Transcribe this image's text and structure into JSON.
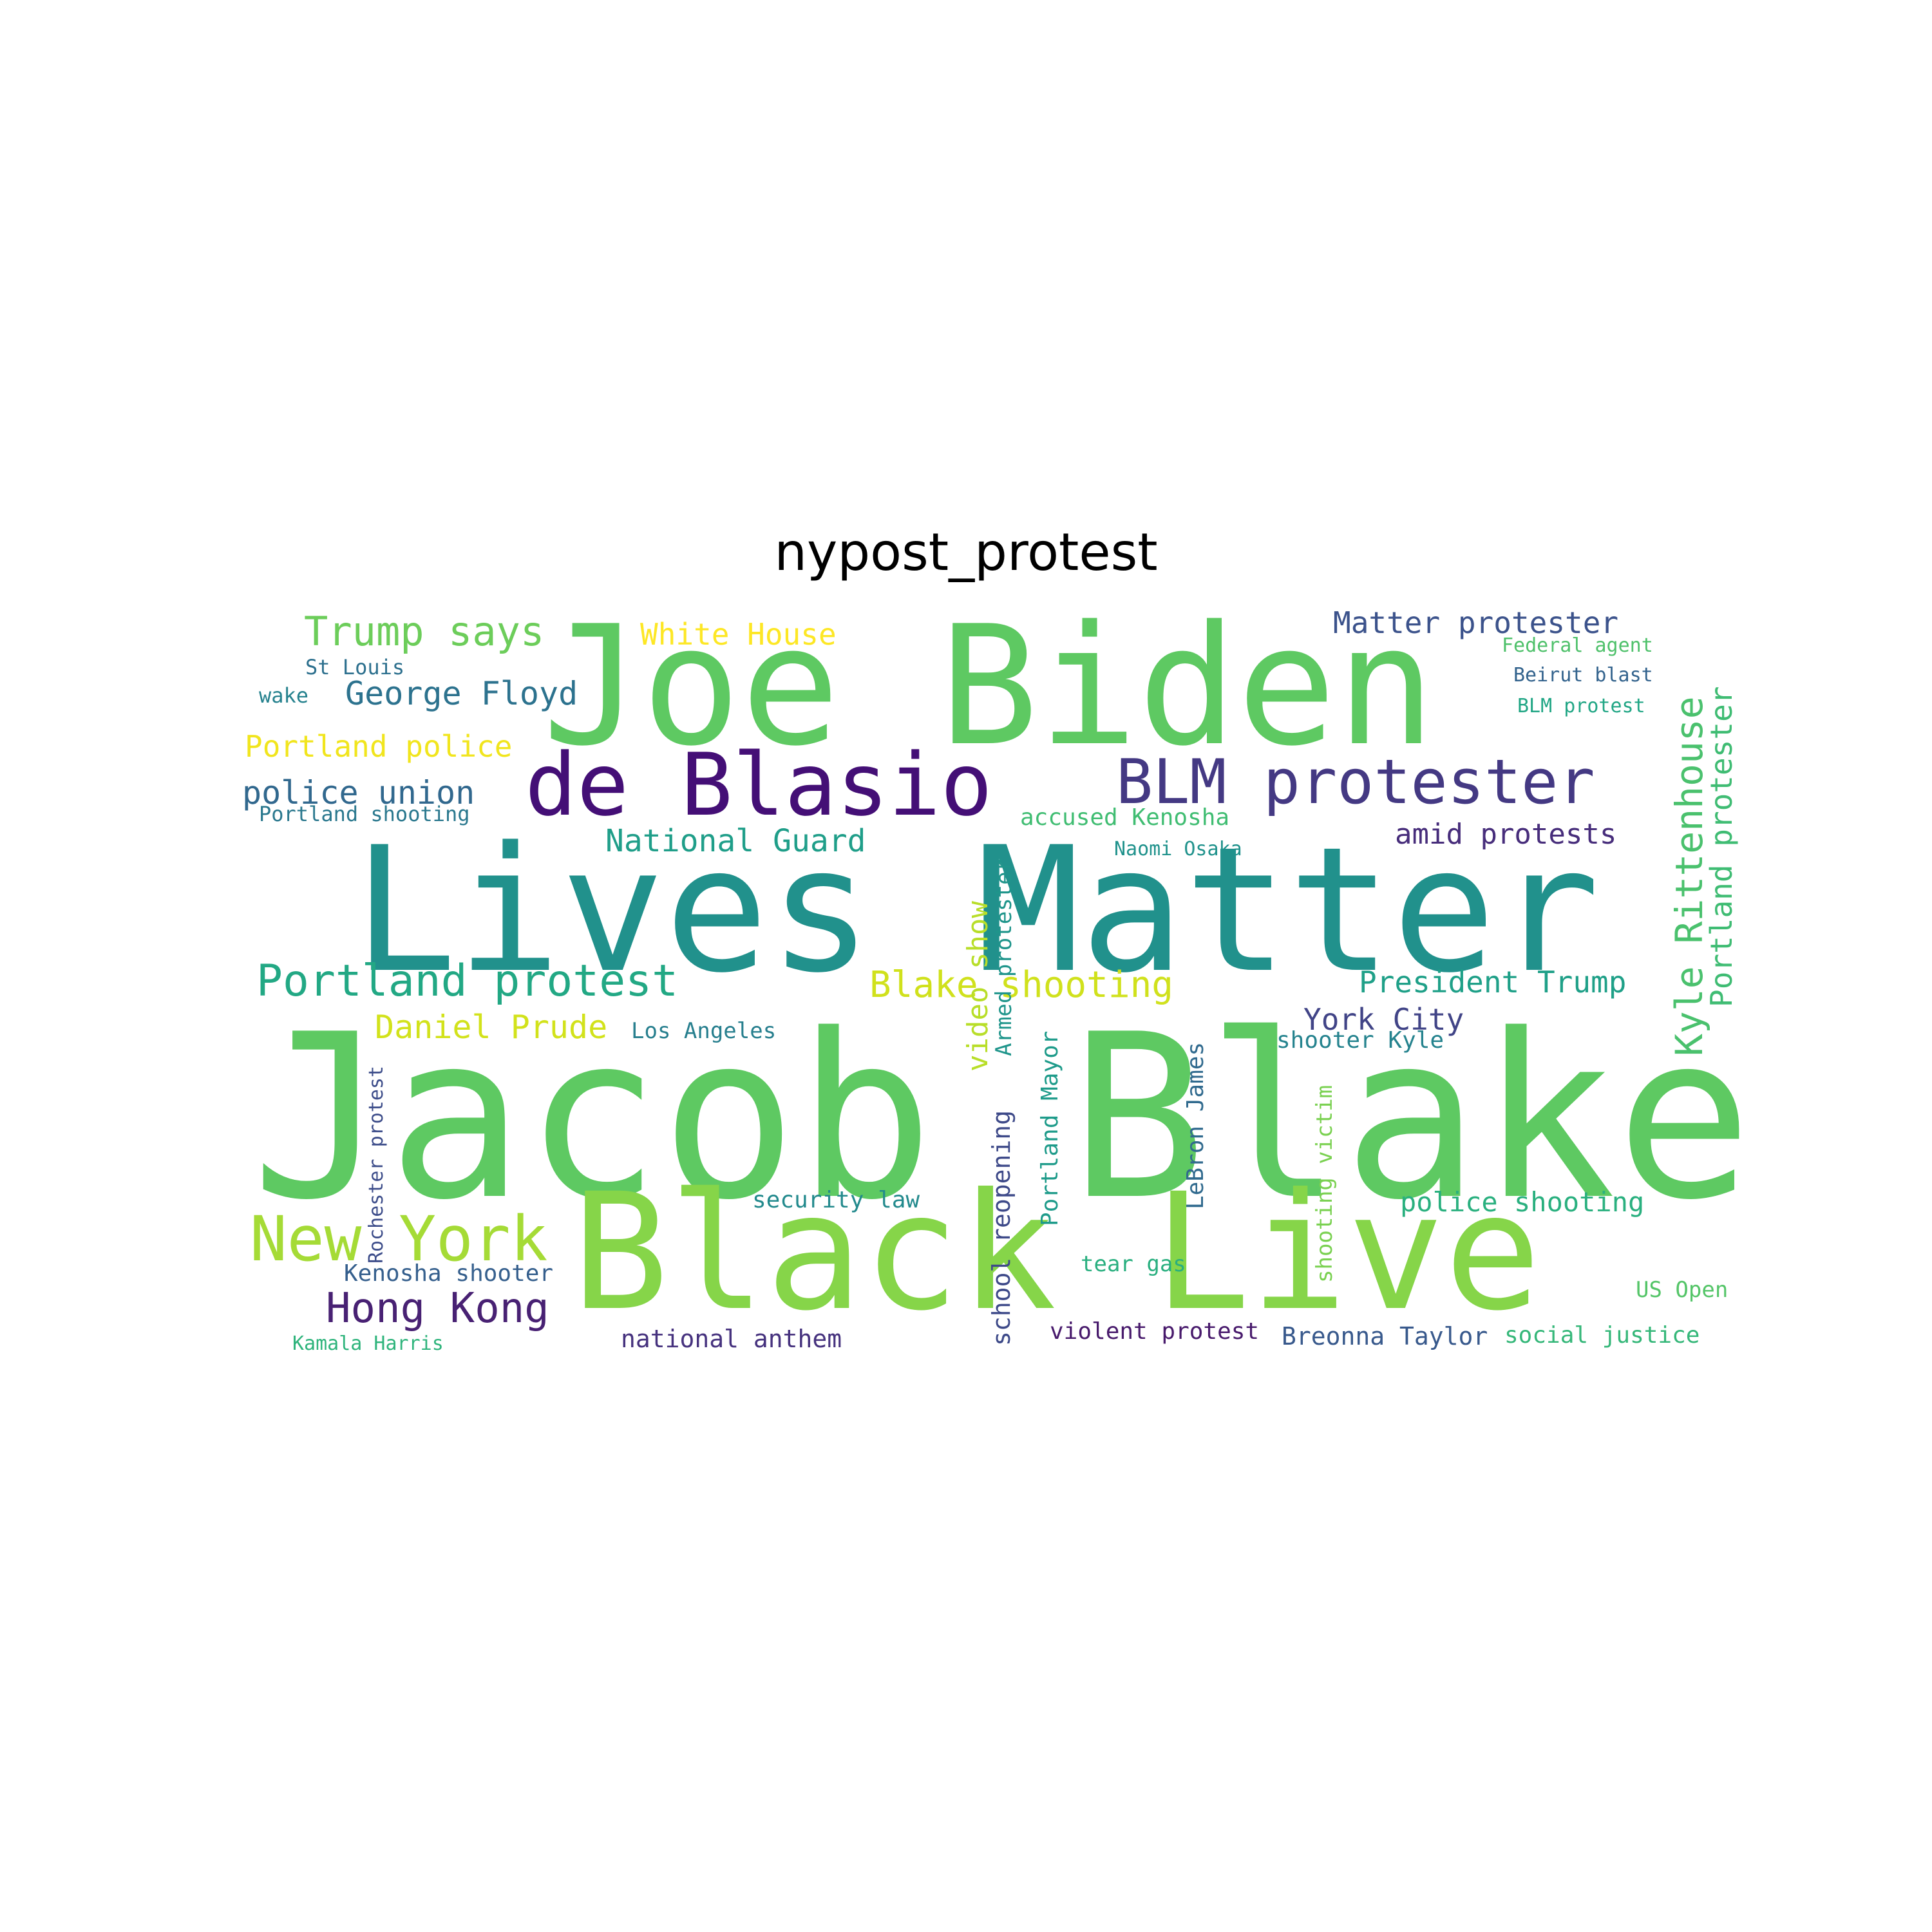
{
  "figure": {
    "title": "nypost_protest"
  },
  "cloud": {
    "type": "wordcloud",
    "words": [
      {
        "text": "Jacob Blake",
        "color": "#5ec962",
        "orientation": "horizontal"
      },
      {
        "text": "Lives Matter",
        "color": "#21918c",
        "orientation": "horizontal"
      },
      {
        "text": "Black Live",
        "color": "#86d549",
        "orientation": "horizontal"
      },
      {
        "text": "Joe Biden",
        "color": "#5ec962",
        "orientation": "horizontal"
      },
      {
        "text": "de Blasio",
        "color": "#440f76",
        "orientation": "horizontal"
      },
      {
        "text": "BLM protester",
        "color": "#443983",
        "orientation": "horizontal"
      },
      {
        "text": "Kyle Rittenhouse",
        "color": "#4ac16d",
        "orientation": "vertical"
      },
      {
        "text": "New York",
        "color": "#a5db36",
        "orientation": "horizontal"
      },
      {
        "text": "Portland protest",
        "color": "#22a884",
        "orientation": "horizontal"
      },
      {
        "text": "Hong Kong",
        "color": "#482173",
        "orientation": "horizontal"
      },
      {
        "text": "Trump says",
        "color": "#6ccd5a",
        "orientation": "horizontal"
      },
      {
        "text": "Portland protester",
        "color": "#3fbc73",
        "orientation": "vertical"
      },
      {
        "text": "Blake shooting",
        "color": "#d0e11c",
        "orientation": "horizontal"
      },
      {
        "text": "National Guard",
        "color": "#1f9e89",
        "orientation": "horizontal"
      },
      {
        "text": "Daniel Prude",
        "color": "#d2e21b",
        "orientation": "horizontal"
      },
      {
        "text": "police union",
        "color": "#31688e",
        "orientation": "horizontal"
      },
      {
        "text": "George Floyd",
        "color": "#2c728e",
        "orientation": "horizontal"
      },
      {
        "text": "Matter protester",
        "color": "#3b528b",
        "orientation": "horizontal"
      },
      {
        "text": "President Trump",
        "color": "#1fa088",
        "orientation": "horizontal"
      },
      {
        "text": "York City",
        "color": "#414487",
        "orientation": "horizontal"
      },
      {
        "text": "amid protests",
        "color": "#472d7b",
        "orientation": "horizontal"
      },
      {
        "text": "Portland police",
        "color": "#f1e51d",
        "orientation": "horizontal"
      },
      {
        "text": "video show",
        "color": "#b8de29",
        "orientation": "vertical"
      },
      {
        "text": "police shooting",
        "color": "#2ab07f",
        "orientation": "horizontal"
      },
      {
        "text": "White House",
        "color": "#fde725",
        "orientation": "horizontal"
      },
      {
        "text": "Breonna Taylor",
        "color": "#38598c",
        "orientation": "horizontal"
      },
      {
        "text": "school reopening",
        "color": "#3e4a89",
        "orientation": "vertical"
      },
      {
        "text": "Kenosha shooter",
        "color": "#355f8d",
        "orientation": "horizontal"
      },
      {
        "text": "LeBron James",
        "color": "#306a8e",
        "orientation": "vertical"
      },
      {
        "text": "national anthem",
        "color": "#46327e",
        "orientation": "horizontal"
      },
      {
        "text": "accused Kenosha",
        "color": "#40bd72",
        "orientation": "horizontal"
      },
      {
        "text": "security law",
        "color": "#238a8d",
        "orientation": "horizontal"
      },
      {
        "text": "Portland Mayor",
        "color": "#1e9b8a",
        "orientation": "vertical"
      },
      {
        "text": "violent protest",
        "color": "#481a6c",
        "orientation": "horizontal"
      },
      {
        "text": "social justice",
        "color": "#35b779",
        "orientation": "horizontal"
      },
      {
        "text": "shooter Kyle",
        "color": "#25838e",
        "orientation": "horizontal"
      },
      {
        "text": "shooting victim",
        "color": "#7ad151",
        "orientation": "vertical"
      },
      {
        "text": "tear gas",
        "color": "#29af7f",
        "orientation": "horizontal"
      },
      {
        "text": "US Open",
        "color": "#54c568",
        "orientation": "horizontal"
      },
      {
        "text": "Los Angeles",
        "color": "#277f8e",
        "orientation": "horizontal"
      },
      {
        "text": "Armed protester",
        "color": "#1f958b",
        "orientation": "vertical"
      },
      {
        "text": "St Louis",
        "color": "#2d708e",
        "orientation": "horizontal"
      },
      {
        "text": "wake",
        "color": "#26828e",
        "orientation": "horizontal"
      },
      {
        "text": "Portland shooting",
        "color": "#2a788e",
        "orientation": "horizontal"
      },
      {
        "text": "Rochester protest",
        "color": "#3d4d8a",
        "orientation": "vertical"
      },
      {
        "text": "Kamala Harris",
        "color": "#2fb47c",
        "orientation": "horizontal"
      },
      {
        "text": "Naomi Osaka",
        "color": "#20928c",
        "orientation": "horizontal"
      },
      {
        "text": "Federal agent",
        "color": "#4fc16b",
        "orientation": "horizontal"
      },
      {
        "text": "Beirut blast",
        "color": "#33638d",
        "orientation": "horizontal"
      },
      {
        "text": "BLM protest",
        "color": "#21a685",
        "orientation": "horizontal"
      }
    ]
  }
}
